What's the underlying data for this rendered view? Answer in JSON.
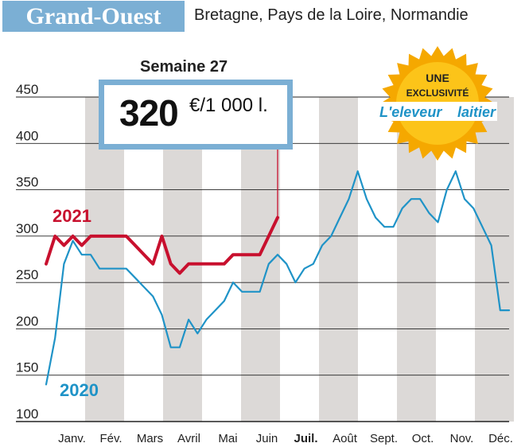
{
  "header": {
    "region": "Grand-Ouest",
    "subregions": "Bretagne, Pays de la Loire, Normandie"
  },
  "callout": {
    "week": "Semaine 27",
    "price": "320",
    "unit": "€/1 000 l."
  },
  "badge": {
    "line1": "UNE",
    "line2": "EXCLUSIVITÉ",
    "brand1": "L'eleveur",
    "brand2": "laitier"
  },
  "colors": {
    "series_2021": "#c8102e",
    "series_2020": "#1f93c7",
    "accent": "#7bafd4",
    "band": "#dcd9d7",
    "badge": "#f5a800"
  },
  "chart_data": {
    "type": "line",
    "title": "",
    "xlabel": "",
    "ylabel": "",
    "ylim": [
      100,
      450
    ],
    "yticks": [
      100,
      150,
      200,
      250,
      300,
      350,
      400,
      450
    ],
    "x_unit": "week",
    "xlim": [
      1,
      53
    ],
    "months": [
      "Janv.",
      "Fév.",
      "Mars",
      "Avril",
      "Mai",
      "Juin",
      "Juil.",
      "Août",
      "Sept.",
      "Oct.",
      "Nov.",
      "Déc."
    ],
    "highlight_month": "Juil.",
    "grid": "horizontal",
    "series": [
      {
        "name": "2021",
        "x": [
          1,
          2,
          3,
          4,
          5,
          6,
          7,
          8,
          9,
          10,
          11,
          12,
          13,
          14,
          15,
          16,
          17,
          18,
          19,
          20,
          21,
          22,
          23,
          24,
          25,
          26,
          27
        ],
        "values": [
          270,
          300,
          290,
          300,
          290,
          300,
          300,
          300,
          300,
          300,
          290,
          280,
          270,
          300,
          270,
          260,
          270,
          270,
          270,
          270,
          270,
          280,
          280,
          280,
          280,
          300,
          320
        ]
      },
      {
        "name": "2020",
        "x": [
          1,
          2,
          3,
          4,
          5,
          6,
          7,
          8,
          9,
          10,
          11,
          12,
          13,
          14,
          15,
          16,
          17,
          18,
          19,
          20,
          21,
          22,
          23,
          24,
          25,
          26,
          27,
          28,
          29,
          30,
          31,
          32,
          33,
          34,
          35,
          36,
          37,
          38,
          39,
          40,
          41,
          42,
          43,
          44,
          45,
          46,
          47,
          48,
          49,
          50,
          51,
          52,
          53
        ],
        "values": [
          140,
          190,
          270,
          295,
          280,
          280,
          265,
          265,
          265,
          265,
          255,
          245,
          235,
          215,
          180,
          180,
          210,
          195,
          210,
          220,
          230,
          250,
          240,
          240,
          240,
          270,
          280,
          270,
          250,
          265,
          270,
          290,
          300,
          320,
          340,
          370,
          340,
          320,
          310,
          310,
          330,
          340,
          340,
          325,
          315,
          350,
          370,
          340,
          330,
          310,
          290,
          220,
          220
        ]
      }
    ]
  }
}
